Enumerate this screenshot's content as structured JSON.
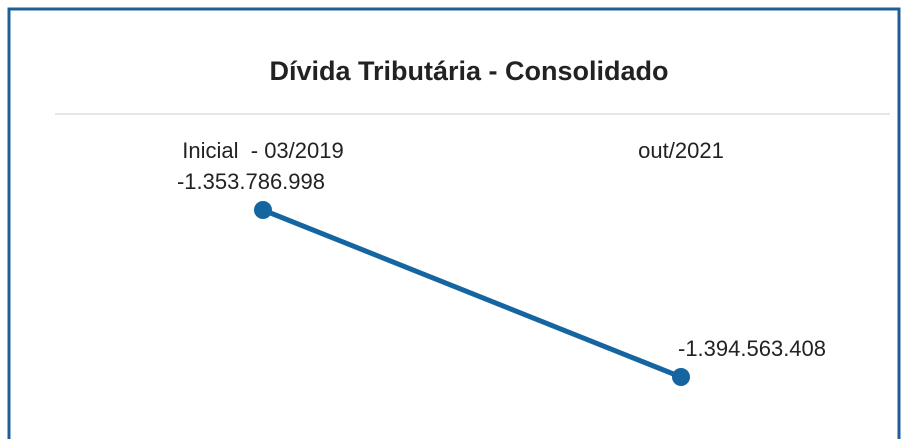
{
  "chart_data": {
    "type": "line",
    "title": "Dívida Tributária - Consolidado",
    "categories": [
      "Inicial  - 03/2019",
      "out/2021"
    ],
    "series": [
      {
        "name": null,
        "color": "#1565a0",
        "values": [
          -1353786998,
          -1394563408
        ],
        "value_labels": [
          "-1.353.786.998",
          "-1.394.563.408"
        ]
      }
    ]
  }
}
